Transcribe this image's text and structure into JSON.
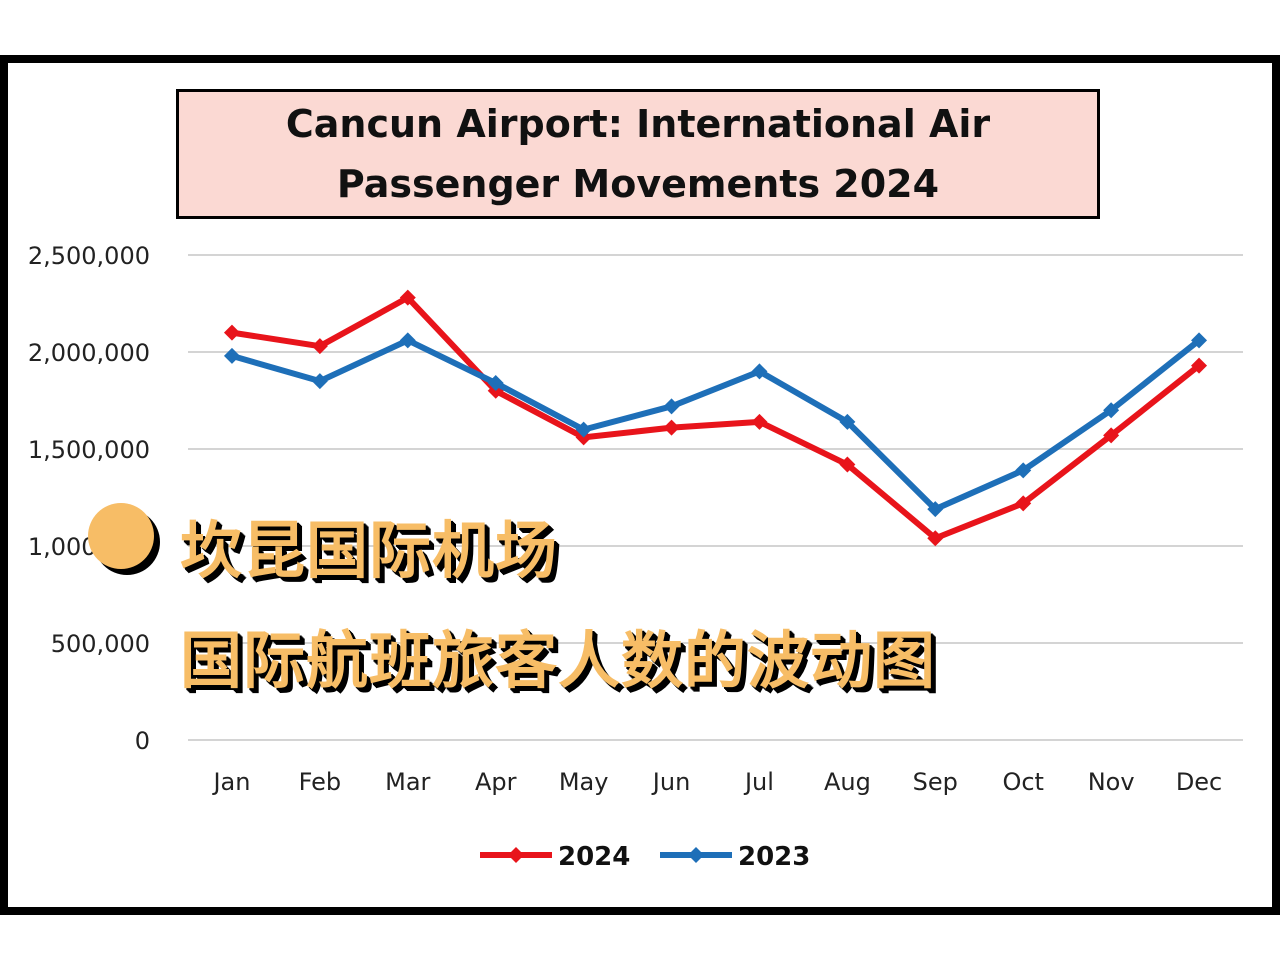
{
  "chart_data": {
    "type": "line",
    "title": "Cancun Airport: International Air Passenger Movements 2024",
    "categories": [
      "Jan",
      "Feb",
      "Mar",
      "Apr",
      "May",
      "Jun",
      "Jul",
      "Aug",
      "Sep",
      "Oct",
      "Nov",
      "Dec"
    ],
    "yticks": [
      "0",
      "500,000",
      "1,000,000",
      "1,500,000",
      "2,000,000",
      "2,500,000"
    ],
    "ylim": [
      0,
      2500000
    ],
    "grid": true,
    "legend_position": "bottom",
    "series": [
      {
        "name": "2024",
        "color": "#e8141b",
        "values": [
          2100000,
          2030000,
          2280000,
          1800000,
          1560000,
          1610000,
          1640000,
          1420000,
          1040000,
          1220000,
          1570000,
          1930000
        ]
      },
      {
        "name": "2023",
        "color": "#1e6fb8",
        "values": [
          1980000,
          1850000,
          2060000,
          1840000,
          1600000,
          1720000,
          1900000,
          1640000,
          1190000,
          1390000,
          1700000,
          2060000
        ]
      }
    ]
  },
  "overlay": {
    "line1": "坎昆国际机场",
    "line2": "国际航班旅客人数的波动图",
    "accent_color": "#f7bd66"
  }
}
